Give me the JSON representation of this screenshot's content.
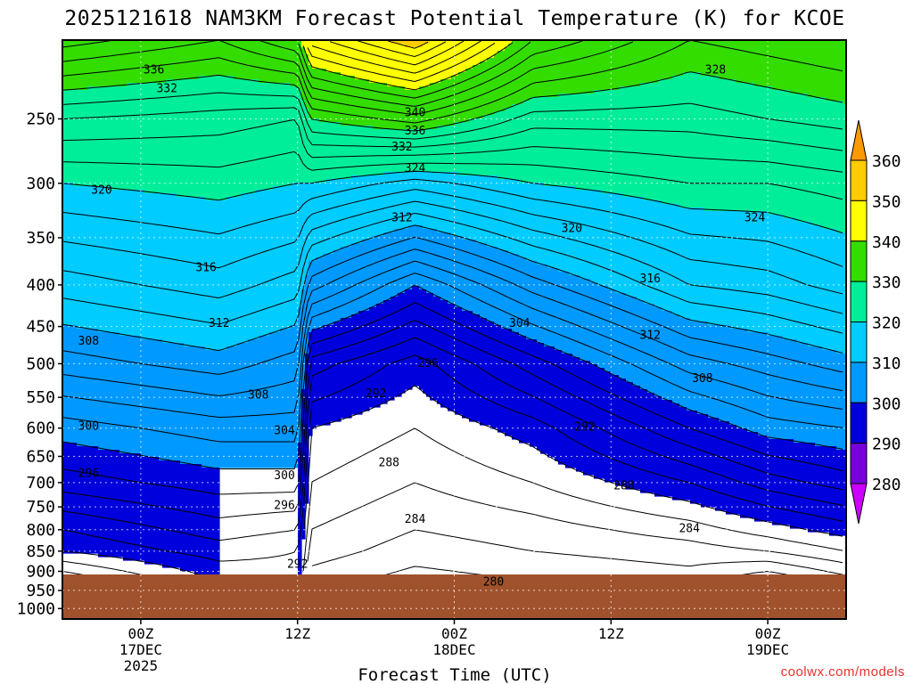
{
  "chart_data": {
    "type": "contour",
    "title": "2025121618 NAM3KM Forecast Potential Temperature (K) for KCOE",
    "xlabel": "Forecast Time (UTC)",
    "ylabel": "",
    "x_range_hours_from_start": [
      0,
      60
    ],
    "x_ticks": [
      {
        "hour": 6,
        "labels": [
          "00Z",
          "17DEC",
          "2025"
        ]
      },
      {
        "hour": 18,
        "labels": [
          "12Z"
        ]
      },
      {
        "hour": 30,
        "labels": [
          "00Z",
          "18DEC"
        ]
      },
      {
        "hour": 42,
        "labels": [
          "12Z"
        ]
      },
      {
        "hour": 54,
        "labels": [
          "00Z",
          "19DEC"
        ]
      }
    ],
    "y_axis": {
      "units": "hPa",
      "range": [
        1030,
        200
      ],
      "ticks": [
        "250",
        "300",
        "350",
        "400",
        "450",
        "500",
        "550",
        "600",
        "650",
        "700",
        "750",
        "800",
        "850",
        "900",
        "950",
        "1000"
      ]
    },
    "grid": true,
    "colorbar": {
      "labels": [
        "360",
        "350",
        "340",
        "330",
        "320",
        "310",
        "300",
        "290",
        "280"
      ],
      "levels": [
        360,
        350,
        340,
        330,
        320,
        310,
        300,
        290,
        280
      ],
      "colors": [
        "#ff9900",
        "#ffcc00",
        "#ffff00",
        "#33dd00",
        "#00ee99",
        "#00ccff",
        "#0099ff",
        "#0000dd",
        "#7700dd",
        "#cc00ff"
      ]
    },
    "terrain_color": "#a0522d",
    "surface_pressure_hpa": 926,
    "theta_profile_anchors": [
      {
        "hour": 0,
        "levels": [
          [
            926,
            284
          ],
          [
            850,
            290
          ],
          [
            800,
            292
          ],
          [
            700,
            297
          ],
          [
            600,
            301
          ],
          [
            500,
            307
          ],
          [
            400,
            313
          ],
          [
            300,
            320
          ],
          [
            250,
            326
          ],
          [
            200,
            337
          ]
        ]
      },
      {
        "hour": 12,
        "levels": [
          [
            926,
            290
          ],
          [
            850,
            293
          ],
          [
            800,
            295
          ],
          [
            700,
            299
          ],
          [
            600,
            303
          ],
          [
            500,
            309
          ],
          [
            400,
            315
          ],
          [
            300,
            321
          ],
          [
            250,
            325
          ],
          [
            200,
            334
          ]
        ]
      },
      {
        "hour": 18,
        "levels": [
          [
            926,
            291
          ],
          [
            850,
            292
          ],
          [
            800,
            294
          ],
          [
            700,
            299
          ],
          [
            600,
            303
          ],
          [
            500,
            307
          ],
          [
            400,
            313
          ],
          [
            300,
            320
          ],
          [
            250,
            324
          ],
          [
            200,
            338
          ]
        ]
      },
      {
        "hour": 19,
        "levels": [
          [
            926,
            283
          ],
          [
            850,
            285
          ],
          [
            800,
            286
          ],
          [
            700,
            288
          ],
          [
            600,
            290
          ],
          [
            500,
            295
          ],
          [
            400,
            307
          ],
          [
            300,
            320
          ],
          [
            250,
            330
          ],
          [
            200,
            345
          ]
        ]
      },
      {
        "hour": 27,
        "levels": [
          [
            926,
            281
          ],
          [
            850,
            283
          ],
          [
            800,
            284
          ],
          [
            700,
            286
          ],
          [
            600,
            288
          ],
          [
            500,
            291
          ],
          [
            400,
            300
          ],
          [
            300,
            317
          ],
          [
            250,
            333
          ],
          [
            200,
            352
          ]
        ]
      },
      {
        "hour": 36,
        "levels": [
          [
            926,
            282
          ],
          [
            850,
            284
          ],
          [
            800,
            285
          ],
          [
            700,
            288
          ],
          [
            600,
            291
          ],
          [
            500,
            297
          ],
          [
            400,
            307
          ],
          [
            300,
            320
          ],
          [
            250,
            327
          ],
          [
            200,
            338
          ]
        ]
      },
      {
        "hour": 48,
        "levels": [
          [
            926,
            283
          ],
          [
            850,
            285
          ],
          [
            800,
            287
          ],
          [
            700,
            292
          ],
          [
            600,
            298
          ],
          [
            500,
            305
          ],
          [
            400,
            314
          ],
          [
            300,
            322
          ],
          [
            250,
            327
          ],
          [
            200,
            332
          ]
        ]
      },
      {
        "hour": 54,
        "levels": [
          [
            926,
            280
          ],
          [
            850,
            286
          ],
          [
            800,
            289
          ],
          [
            700,
            295
          ],
          [
            600,
            301
          ],
          [
            500,
            307
          ],
          [
            400,
            315
          ],
          [
            300,
            322
          ],
          [
            250,
            328
          ],
          [
            200,
            333
          ]
        ]
      },
      {
        "hour": 60,
        "levels": [
          [
            926,
            283
          ],
          [
            850,
            288
          ],
          [
            800,
            291
          ],
          [
            700,
            297
          ],
          [
            600,
            302
          ],
          [
            500,
            309
          ],
          [
            400,
            317
          ],
          [
            300,
            323
          ],
          [
            250,
            329
          ],
          [
            200,
            334
          ]
        ]
      }
    ],
    "contour_labels": [
      {
        "text": "336",
        "hour": 7,
        "p": 217
      },
      {
        "text": "332",
        "hour": 8,
        "p": 229
      },
      {
        "text": "320",
        "hour": 3,
        "p": 305
      },
      {
        "text": "316",
        "hour": 11,
        "p": 380
      },
      {
        "text": "312",
        "hour": 12,
        "p": 445
      },
      {
        "text": "308",
        "hour": 2,
        "p": 468
      },
      {
        "text": "308",
        "hour": 15,
        "p": 545
      },
      {
        "text": "300",
        "hour": 2,
        "p": 595
      },
      {
        "text": "304",
        "hour": 17,
        "p": 603
      },
      {
        "text": "296",
        "hour": 2,
        "p": 680
      },
      {
        "text": "300",
        "hour": 17,
        "p": 685
      },
      {
        "text": "296",
        "hour": 17,
        "p": 745
      },
      {
        "text": "292",
        "hour": 18,
        "p": 880
      },
      {
        "text": "340",
        "hour": 27,
        "p": 245
      },
      {
        "text": "336",
        "hour": 27,
        "p": 258
      },
      {
        "text": "332",
        "hour": 26,
        "p": 270
      },
      {
        "text": "324",
        "hour": 27,
        "p": 287
      },
      {
        "text": "312",
        "hour": 26,
        "p": 330
      },
      {
        "text": "328",
        "hour": 50,
        "p": 217
      },
      {
        "text": "320",
        "hour": 39,
        "p": 340
      },
      {
        "text": "324",
        "hour": 53,
        "p": 330
      },
      {
        "text": "316",
        "hour": 45,
        "p": 392
      },
      {
        "text": "304",
        "hour": 35,
        "p": 445
      },
      {
        "text": "312",
        "hour": 45,
        "p": 460
      },
      {
        "text": "296",
        "hour": 28,
        "p": 498
      },
      {
        "text": "308",
        "hour": 49,
        "p": 520
      },
      {
        "text": "292",
        "hour": 24,
        "p": 543
      },
      {
        "text": "292",
        "hour": 40,
        "p": 597
      },
      {
        "text": "288",
        "hour": 25,
        "p": 660
      },
      {
        "text": "288",
        "hour": 43,
        "p": 705
      },
      {
        "text": "284",
        "hour": 27,
        "p": 775
      },
      {
        "text": "284",
        "hour": 48,
        "p": 795
      },
      {
        "text": "280",
        "hour": 33,
        "p": 925
      }
    ]
  },
  "watermark": "coolwx.com/models"
}
